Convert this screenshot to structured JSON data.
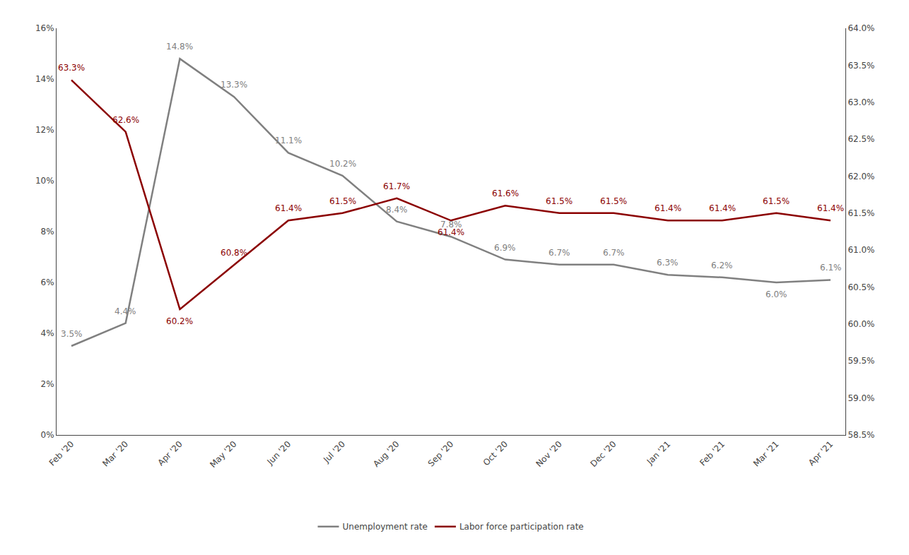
{
  "chart_data": {
    "type": "line",
    "categories": [
      "Feb '20",
      "Mar '20",
      "Apr '20",
      "May '20",
      "Jun '20",
      "Jul '20",
      "Aug '20",
      "Sep '20",
      "Oct '20",
      "Nov '20",
      "Dec '20",
      "Jan '21",
      "Feb '21",
      "Mar '21",
      "Apr '21"
    ],
    "series": [
      {
        "name": "Unemployment rate",
        "color": "#808080",
        "axis": "y",
        "values": [
          3.5,
          4.4,
          14.8,
          13.3,
          11.1,
          10.2,
          8.4,
          7.8,
          6.9,
          6.7,
          6.7,
          6.3,
          6.2,
          6.0,
          6.1
        ],
        "value_labels": [
          "3.5%",
          "4.4%",
          "14.8%",
          "13.3%",
          "11.1%",
          "10.2%",
          "8.4%",
          "7.8%",
          "6.9%",
          "6.7%",
          "6.7%",
          "6.3%",
          "6.2%",
          "6.0%",
          "6.1%"
        ]
      },
      {
        "name": "Labor force participation rate",
        "color": "#8B0000",
        "axis": "y2",
        "values": [
          63.3,
          62.6,
          60.2,
          60.8,
          61.4,
          61.5,
          61.7,
          61.4,
          61.6,
          61.5,
          61.5,
          61.4,
          61.4,
          61.5,
          61.4
        ],
        "value_labels": [
          "63.3%",
          "62.6%",
          "60.2%",
          "60.8%",
          "61.4%",
          "61.5%",
          "61.7%",
          "61.4%",
          "61.6%",
          "61.5%",
          "61.5%",
          "61.4%",
          "61.4%",
          "61.5%",
          "61.4%"
        ]
      }
    ],
    "ylim": [
      0,
      16
    ],
    "yticks": [
      {
        "value": 0,
        "label": "0%"
      },
      {
        "value": 2,
        "label": "2%"
      },
      {
        "value": 4,
        "label": "4%"
      },
      {
        "value": 6,
        "label": "6%"
      },
      {
        "value": 8,
        "label": "8%"
      },
      {
        "value": 10,
        "label": "10%"
      },
      {
        "value": 12,
        "label": "12%"
      },
      {
        "value": 14,
        "label": "14%"
      },
      {
        "value": 16,
        "label": "16%"
      }
    ],
    "y2lim": [
      58.5,
      64.0
    ],
    "y2ticks": [
      {
        "value": 58.5,
        "label": "58.5%"
      },
      {
        "value": 59.0,
        "label": "59.0%"
      },
      {
        "value": 59.5,
        "label": "59.5%"
      },
      {
        "value": 60.0,
        "label": "60.0%"
      },
      {
        "value": 60.5,
        "label": "60.5%"
      },
      {
        "value": 61.0,
        "label": "61.0%"
      },
      {
        "value": 61.5,
        "label": "61.5%"
      },
      {
        "value": 62.0,
        "label": "62.0%"
      },
      {
        "value": 62.5,
        "label": "62.5%"
      },
      {
        "value": 63.0,
        "label": "63.0%"
      },
      {
        "value": 63.5,
        "label": "63.5%"
      },
      {
        "value": 64.0,
        "label": "64.0%"
      }
    ],
    "data_labels": true,
    "grid": false,
    "legend": "bottom"
  }
}
